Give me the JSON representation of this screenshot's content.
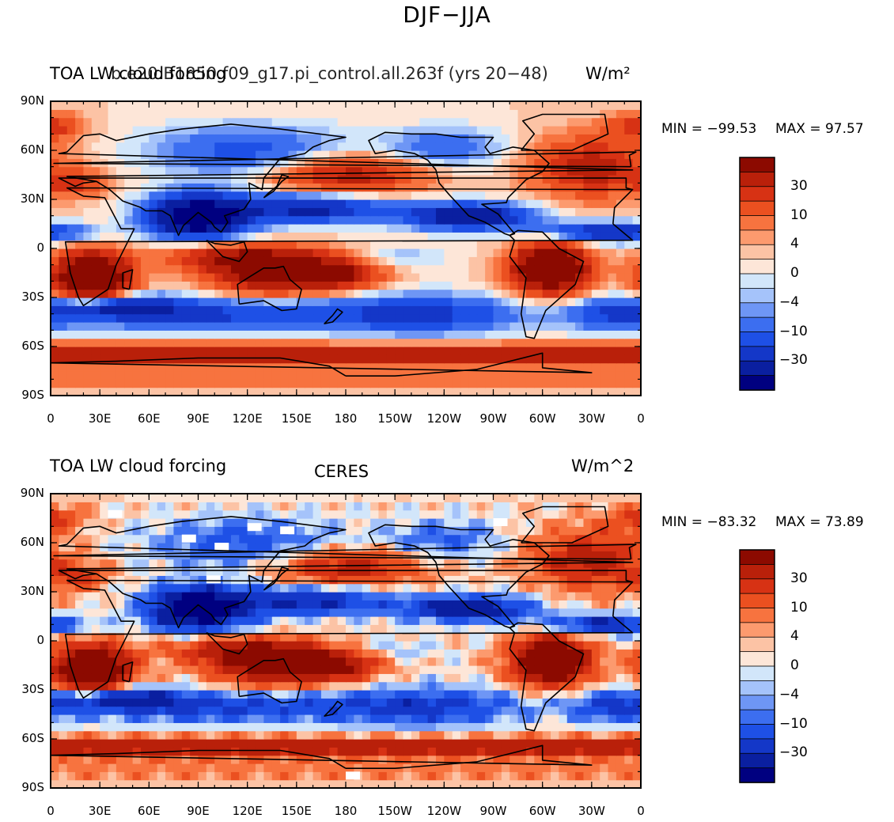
{
  "figure_title": "DJF−JJA",
  "panels": [
    {
      "left_title": "TOA LW cloud forcing",
      "overlay_title": "b.e20.B1850.f09_g17.pi_control.all.263f (yrs 20−48)",
      "right_title": "W/m²",
      "min_label": "MIN = −99.53",
      "max_label": "MAX =   97.57"
    },
    {
      "left_title": "TOA LW cloud forcing",
      "center_title": "CERES",
      "right_title": "W/m^2",
      "min_label": "MIN = −83.32",
      "max_label": "MAX =   73.89"
    }
  ],
  "colors": {
    "colorbar": [
      "#000080",
      "#0a1fa0",
      "#1437c8",
      "#1e50e6",
      "#3c6ef0",
      "#6e96f5",
      "#a5c3fa",
      "#d2e6fa",
      "#fde6d8",
      "#fcc3a5",
      "#fc9a6e",
      "#f7733f",
      "#eb5020",
      "#d73214",
      "#b9200a",
      "#8c0a00"
    ],
    "land_outline": "#000000",
    "missing": "#ffffff"
  },
  "chart_data": [
    {
      "type": "heatmap",
      "title": "TOA LW cloud forcing",
      "subtitle": "b.e20.B1850.f09_g17.pi_control.all.263f (yrs 20−48)",
      "units": "W/m²",
      "xlim": [
        0,
        360
      ],
      "ylim": [
        -90,
        90
      ],
      "x_tick_labels": [
        "0",
        "30E",
        "60E",
        "90E",
        "120E",
        "150E",
        "180",
        "150W",
        "120W",
        "90W",
        "60W",
        "30W",
        "0"
      ],
      "y_tick_labels": [
        "90N",
        "60N",
        "30N",
        "0",
        "30S",
        "60S",
        "90S"
      ],
      "colorbar_levels": [
        -50,
        -40,
        -30,
        -20,
        -15,
        -10,
        -6,
        -4,
        -2,
        0,
        2,
        4,
        6,
        10,
        15,
        20,
        30,
        40,
        50
      ],
      "colorbar_tick_labels": [
        "30",
        "10",
        "4",
        "0",
        "−4",
        "−10",
        "−30"
      ],
      "min": -99.53,
      "max": 97.57
    },
    {
      "type": "heatmap",
      "title": "TOA LW cloud forcing",
      "subtitle": "CERES",
      "units": "W/m^2",
      "xlim": [
        0,
        360
      ],
      "ylim": [
        -90,
        90
      ],
      "x_tick_labels": [
        "0",
        "30E",
        "60E",
        "90E",
        "120E",
        "150E",
        "180",
        "150W",
        "120W",
        "90W",
        "60W",
        "30W",
        "0"
      ],
      "y_tick_labels": [
        "90N",
        "60N",
        "30N",
        "0",
        "30S",
        "60S",
        "90S"
      ],
      "colorbar_levels": [
        -50,
        -40,
        -30,
        -20,
        -15,
        -10,
        -6,
        -4,
        -2,
        0,
        2,
        4,
        6,
        10,
        15,
        20,
        30,
        40,
        50
      ],
      "colorbar_tick_labels": [
        "30",
        "10",
        "4",
        "0",
        "−4",
        "−10",
        "−30"
      ],
      "min": -83.32,
      "max": 73.89
    }
  ]
}
